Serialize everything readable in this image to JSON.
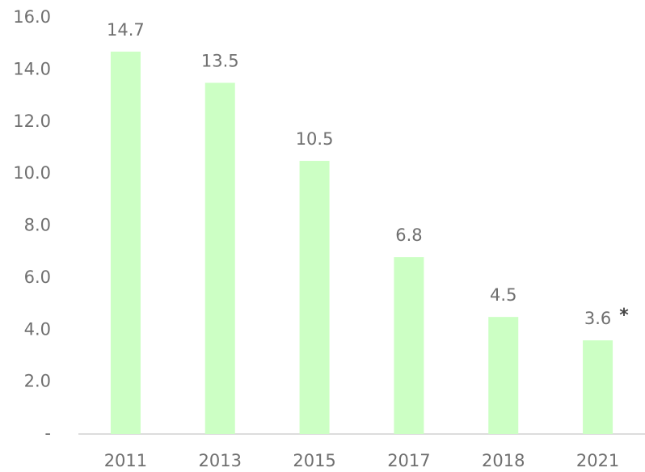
{
  "chart_data": {
    "type": "bar",
    "categories": [
      "2011",
      "2013",
      "2015",
      "2017",
      "2018",
      "2021"
    ],
    "values": [
      14.7,
      13.5,
      10.5,
      6.8,
      4.5,
      3.6
    ],
    "color": "#ccffc4",
    "annotation": "*",
    "ylim": [
      0,
      16
    ],
    "yticks": [
      {
        "value": 0,
        "label": "-"
      },
      {
        "value": 2,
        "label": "2.0"
      },
      {
        "value": 4,
        "label": "4.0"
      },
      {
        "value": 6,
        "label": "6.0"
      },
      {
        "value": 8,
        "label": "8.0"
      },
      {
        "value": 10,
        "label": "10.0"
      },
      {
        "value": 12,
        "label": "12.0"
      },
      {
        "value": 14,
        "label": "14.0"
      },
      {
        "value": 16,
        "label": "16.0"
      }
    ],
    "grid": false
  }
}
